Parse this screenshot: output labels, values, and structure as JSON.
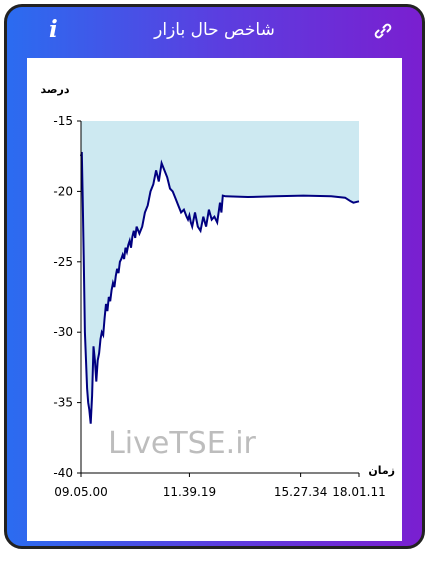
{
  "header": {
    "title": "شاخص حال بازار",
    "info_label": "i",
    "info_icon": "info-icon",
    "link_icon": "link-icon"
  },
  "watermark": "LiveTSE.ir",
  "colors": {
    "line": "#000080",
    "fill": "#cde9f1",
    "gradient_start": "#2b6cf0",
    "gradient_end": "#7a1fd0"
  },
  "chart_data": {
    "type": "area",
    "ylabel": "درصد",
    "xlabel": "زمان",
    "ylim": [
      -40,
      -15
    ],
    "y_ticks": [
      -15,
      -20,
      -25,
      -30,
      -35,
      -40
    ],
    "x_ticks": [
      "09.05.00",
      "11.39.19",
      "15.27.34",
      "18.01.11"
    ],
    "x_tick_positions": [
      0.0,
      0.39,
      0.79,
      1.0
    ],
    "series": [
      {
        "x": [
          0.0,
          0.003,
          0.006,
          0.01,
          0.014,
          0.018,
          0.022,
          0.026,
          0.03,
          0.035,
          0.04,
          0.045,
          0.05,
          0.055,
          0.06,
          0.065,
          0.07,
          0.075,
          0.08,
          0.085,
          0.09,
          0.095,
          0.1,
          0.105,
          0.11,
          0.115,
          0.12,
          0.125,
          0.13,
          0.135,
          0.14,
          0.145,
          0.15,
          0.155,
          0.16,
          0.165,
          0.17,
          0.175,
          0.18,
          0.185,
          0.19,
          0.195,
          0.2,
          0.21,
          0.22,
          0.23,
          0.24,
          0.25,
          0.26,
          0.27,
          0.28,
          0.29,
          0.3,
          0.31,
          0.32,
          0.33,
          0.34,
          0.35,
          0.36,
          0.37,
          0.38,
          0.385,
          0.39,
          0.395,
          0.4,
          0.41,
          0.42,
          0.43,
          0.44,
          0.45,
          0.46,
          0.47,
          0.48,
          0.49,
          0.5,
          0.505,
          0.51,
          0.52,
          0.6,
          0.7,
          0.8,
          0.9,
          0.95,
          0.97,
          0.98,
          1.0
        ],
        "y": [
          -17.5,
          -17.2,
          -20.5,
          -25,
          -30,
          -32,
          -34,
          -35,
          -35.5,
          -36.5,
          -34.5,
          -31,
          -32,
          -33.5,
          -32,
          -31.5,
          -30.5,
          -30,
          -30.2,
          -29,
          -28,
          -28.5,
          -27.5,
          -27.8,
          -27,
          -26.5,
          -26.8,
          -26,
          -25.5,
          -25.8,
          -25,
          -24.8,
          -24.5,
          -24.8,
          -24,
          -24.3,
          -23.8,
          -23.5,
          -24,
          -23.2,
          -22.8,
          -23.3,
          -22.5,
          -23,
          -22.5,
          -21.5,
          -21,
          -20,
          -19.5,
          -18.5,
          -19.3,
          -18,
          -18.5,
          -19,
          -19.8,
          -20,
          -20.5,
          -21,
          -21.5,
          -21.3,
          -21.8,
          -22,
          -21.7,
          -22.2,
          -22.5,
          -21.5,
          -22.5,
          -22.8,
          -21.8,
          -22.5,
          -21.3,
          -22,
          -21.8,
          -22.2,
          -20.8,
          -21.5,
          -20.3,
          -20.35,
          -20.4,
          -20.35,
          -20.3,
          -20.35,
          -20.45,
          -20.7,
          -20.8,
          -20.7
        ]
      }
    ]
  }
}
